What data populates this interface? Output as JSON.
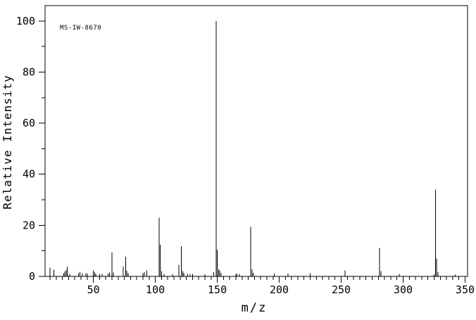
{
  "figure": {
    "background_color": "#ffffff",
    "foreground_color": "#000000"
  },
  "chart_data": {
    "type": "bar",
    "subtype": "mass-spectrum-stick-plot",
    "annotation": "MS-IW-8670",
    "xlabel": "m/z",
    "ylabel": "Relative Intensity",
    "xlim": [
      11,
      352
    ],
    "ylim": [
      0,
      106
    ],
    "grid": false,
    "legend": false,
    "x_major_ticks": [
      50,
      100,
      150,
      200,
      250,
      300,
      350
    ],
    "x_tick_labels": [
      "50",
      "100",
      "150",
      "200",
      "250",
      "300",
      "350"
    ],
    "x_minor_tick_step": 5,
    "y_major_ticks": [
      0,
      20,
      40,
      60,
      80,
      100
    ],
    "y_tick_labels": [
      "0",
      "20",
      "40",
      "60",
      "80",
      "100"
    ],
    "y_minor_tick_step": 10,
    "base_peak_mz": 149,
    "molecular_ion_mz": 326,
    "series": [
      {
        "name": "relative_intensity",
        "points": [
          [
            15,
            3.5
          ],
          [
            18,
            2.6
          ],
          [
            26,
            1.2
          ],
          [
            27,
            1.9
          ],
          [
            28,
            2.5
          ],
          [
            29,
            3.8
          ],
          [
            31,
            1.0
          ],
          [
            38,
            1.2
          ],
          [
            39,
            1.8
          ],
          [
            41,
            1.2
          ],
          [
            44,
            1.3
          ],
          [
            45,
            1.1
          ],
          [
            50,
            2.4
          ],
          [
            51,
            1.7
          ],
          [
            52,
            1.0
          ],
          [
            55,
            1.0
          ],
          [
            57,
            1.0
          ],
          [
            62,
            1.1
          ],
          [
            63,
            1.5
          ],
          [
            65,
            9.3
          ],
          [
            66,
            1.5
          ],
          [
            74,
            3.8
          ],
          [
            76,
            7.7
          ],
          [
            77,
            2.2
          ],
          [
            78,
            1.4
          ],
          [
            90,
            1.3
          ],
          [
            91,
            1.6
          ],
          [
            93,
            2.4
          ],
          [
            103,
            23.0
          ],
          [
            104,
            12.4
          ],
          [
            105,
            2.0
          ],
          [
            107,
            1.0
          ],
          [
            114,
            0.8
          ],
          [
            119,
            4.5
          ],
          [
            121,
            11.8
          ],
          [
            122,
            2.0
          ],
          [
            123,
            1.4
          ],
          [
            126,
            0.9
          ],
          [
            128,
            0.9
          ],
          [
            130,
            0.9
          ],
          [
            140,
            0.8
          ],
          [
            147,
            1.7
          ],
          [
            149,
            100.0
          ],
          [
            150,
            10.5
          ],
          [
            151,
            2.8
          ],
          [
            152,
            2.4
          ],
          [
            153,
            1.4
          ],
          [
            165,
            1.0
          ],
          [
            166,
            0.9
          ],
          [
            168,
            0.9
          ],
          [
            177,
            19.4
          ],
          [
            178,
            2.8
          ],
          [
            179,
            1.4
          ],
          [
            196,
            1.1
          ],
          [
            207,
            1.1
          ],
          [
            225,
            1.3
          ],
          [
            253,
            2.3
          ],
          [
            281,
            11.1
          ],
          [
            282,
            2.0
          ],
          [
            297,
            1.0
          ],
          [
            325,
            0.8
          ],
          [
            326,
            34.0
          ],
          [
            327,
            7.0
          ],
          [
            328,
            1.7
          ],
          [
            342,
            0.7
          ]
        ]
      }
    ]
  }
}
